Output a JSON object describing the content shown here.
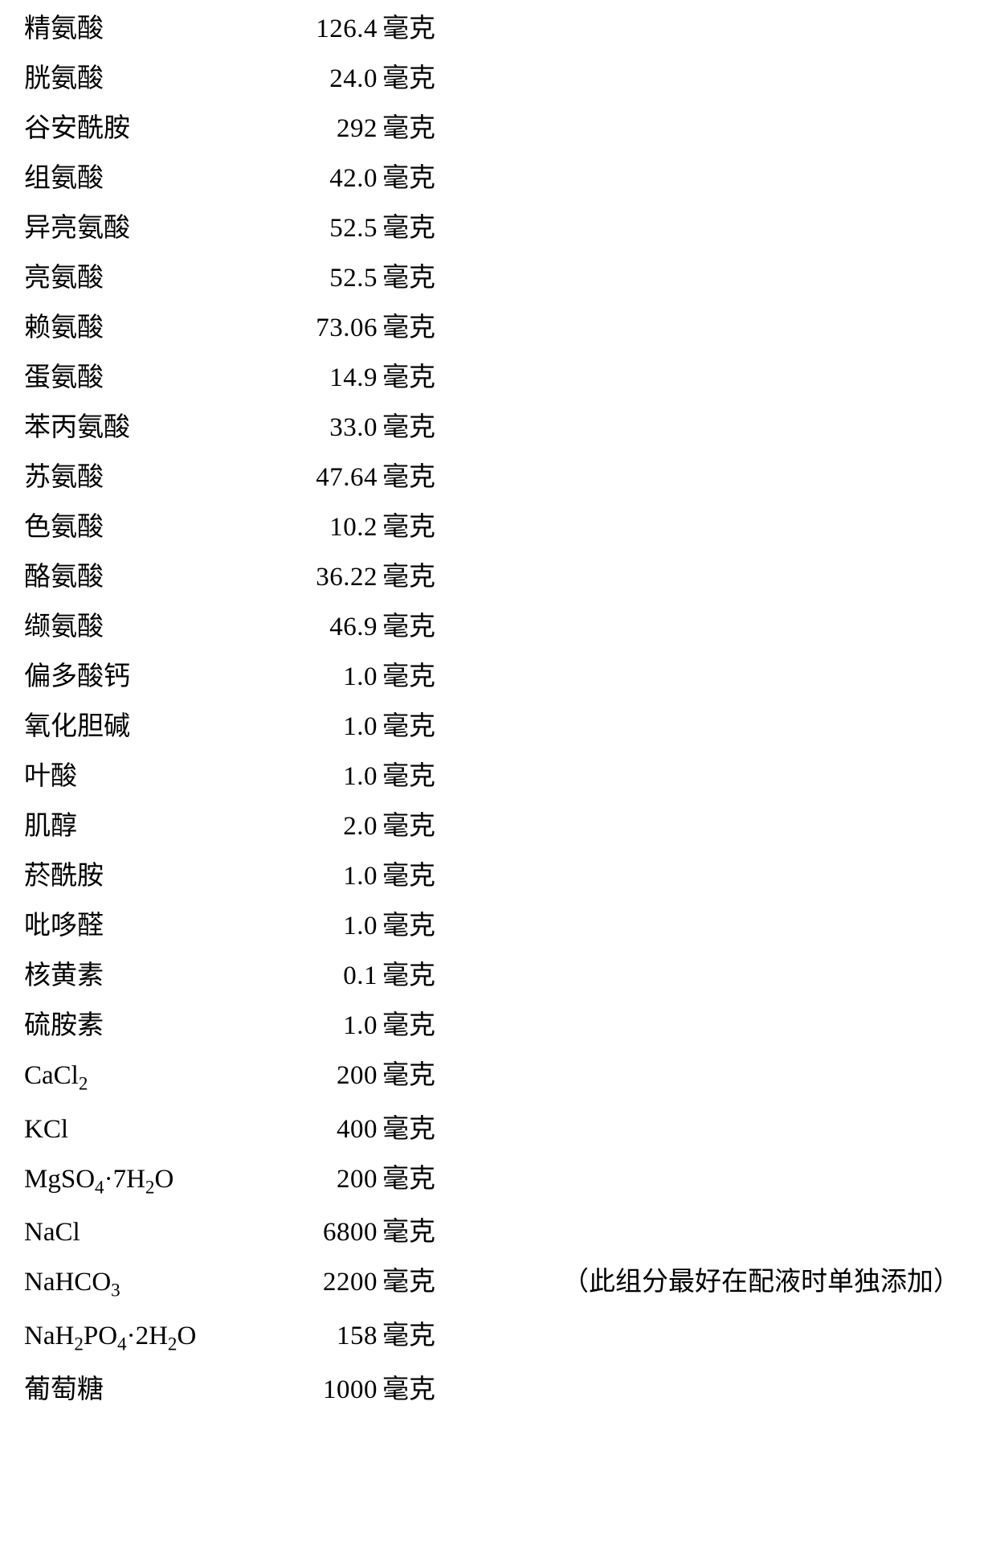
{
  "table": {
    "font_size": 33,
    "text_color": "#000000",
    "background_color": "#ffffff",
    "name_col_width": 280,
    "amount_col_width": 160,
    "unit_col_width": 80,
    "line_spacing": 29,
    "rows": [
      {
        "name": "精氨酸",
        "amount": "126.4",
        "unit": "毫克"
      },
      {
        "name": "胱氨酸",
        "amount": "24.0",
        "unit": "毫克"
      },
      {
        "name": "谷安酰胺",
        "amount": "292",
        "unit": "毫克"
      },
      {
        "name": "组氨酸",
        "amount": "42.0",
        "unit": "毫克"
      },
      {
        "name": "异亮氨酸",
        "amount": "52.5",
        "unit": "毫克"
      },
      {
        "name": "亮氨酸",
        "amount": "52.5",
        "unit": "毫克"
      },
      {
        "name": "赖氨酸",
        "amount": "73.06",
        "unit": "毫克"
      },
      {
        "name": "蛋氨酸",
        "amount": "14.9",
        "unit": "毫克"
      },
      {
        "name": "苯丙氨酸",
        "amount": "33.0",
        "unit": "毫克"
      },
      {
        "name": "苏氨酸",
        "amount": "47.64",
        "unit": "毫克"
      },
      {
        "name": "色氨酸",
        "amount": "10.2",
        "unit": "毫克"
      },
      {
        "name": "酪氨酸",
        "amount": "36.22",
        "unit": "毫克"
      },
      {
        "name": "缬氨酸",
        "amount": "46.9",
        "unit": "毫克"
      },
      {
        "name": "偏多酸钙",
        "amount": "1.0",
        "unit": "毫克"
      },
      {
        "name": "氧化胆碱",
        "amount": "1.0",
        "unit": "毫克"
      },
      {
        "name": "叶酸",
        "amount": "1.0",
        "unit": "毫克"
      },
      {
        "name": "肌醇",
        "amount": "2.0",
        "unit": "毫克"
      },
      {
        "name": "菸酰胺",
        "amount": "1.0",
        "unit": "毫克"
      },
      {
        "name": "吡哆醛",
        "amount": "1.0",
        "unit": "毫克"
      },
      {
        "name": "核黄素",
        "amount": "0.1",
        "unit": "毫克"
      },
      {
        "name": "硫胺素",
        "amount": "1.0",
        "unit": "毫克"
      },
      {
        "name": "CaCl₂",
        "name_html": "CaCl<sub>2</sub>",
        "amount": "200",
        "unit": "毫克"
      },
      {
        "name": "KCl",
        "amount": "400",
        "unit": "毫克"
      },
      {
        "name": "MgSO₄·7H₂O",
        "name_html": "MgSO<sub>4</sub>·7H<sub>2</sub>O",
        "amount": "200",
        "unit": "毫克"
      },
      {
        "name": "NaCl",
        "amount": "6800",
        "unit": "毫克"
      },
      {
        "name": "NaHCO₃",
        "name_html": "NaHCO<sub>3</sub>",
        "amount": "2200",
        "unit": "毫克",
        "note": "（此组分最好在配液时单独添加）"
      },
      {
        "name": "NaH₂PO₄·2H₂O",
        "name_html": "NaH<sub>2</sub>PO<sub>4</sub>·2H<sub>2</sub>O",
        "amount": "158",
        "unit": "毫克"
      },
      {
        "name": "葡萄糖",
        "amount": "1000",
        "unit": "毫克"
      }
    ]
  }
}
